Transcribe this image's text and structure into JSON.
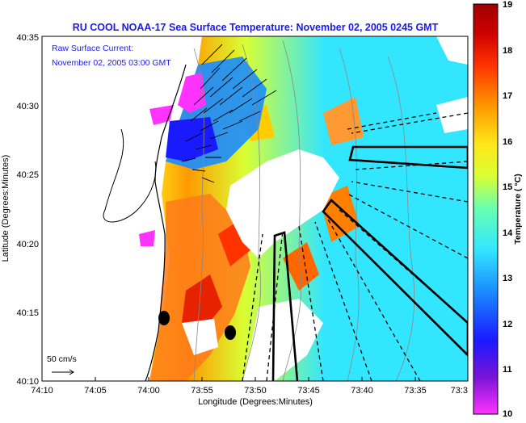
{
  "title": "RU COOL  NOAA-17  Sea Surface Temperature:  November 02, 2005 0245 GMT",
  "annotation_line1": "Raw Surface Current:",
  "annotation_line2": "November 02, 2005 03:00 GMT",
  "scale_label": "50 cm/s",
  "xlabel": "Longitude (Degrees:Minutes)",
  "ylabel": "Latitude (Degrees:Minutes)",
  "x_ticks": [
    "74:10",
    "74:05",
    "74:00",
    "73:55",
    "73:50",
    "73:45",
    "73:40",
    "73:35",
    "73:3"
  ],
  "y_ticks": [
    "40:35",
    "40:30",
    "40:25",
    "40:20",
    "40:15",
    "40:10"
  ],
  "colorbar": {
    "label": "Temperature ( °C)",
    "min": 10,
    "max": 19,
    "ticks": [
      "19",
      "18",
      "17",
      "16",
      "15",
      "14",
      "13",
      "12",
      "11",
      "10"
    ],
    "colors": [
      "#ff33ff",
      "#7a14d6",
      "#1a1aff",
      "#1a8cff",
      "#33e6ff",
      "#66ffb3",
      "#d9ff33",
      "#ffe61a",
      "#ff9900",
      "#ff3300",
      "#cc0000",
      "#a00000"
    ]
  },
  "colors": {
    "land": "#ffffff",
    "ocean_warm_coast": "#ff6a1a",
    "ocean_offshore": "#40d9f0",
    "text_blue": "#1a1aee",
    "outline": "#000000"
  }
}
